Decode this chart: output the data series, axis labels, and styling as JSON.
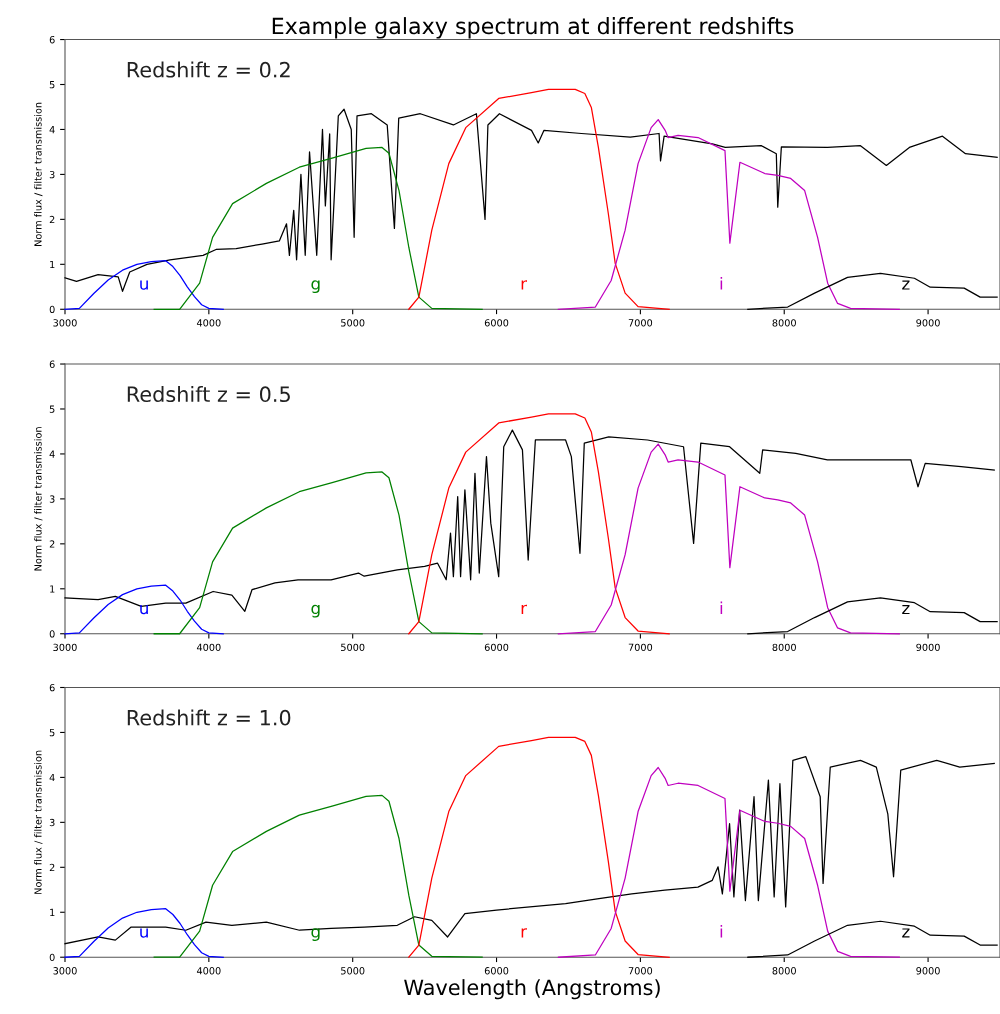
{
  "chart_data": [
    {
      "type": "line",
      "title": "Example galaxy spectrum at different redshifts",
      "subtitle": "Redshift z = 0.2",
      "ylabel": "Norm flux / filter transmission",
      "xlim": [
        3000,
        9500
      ],
      "xticks": [
        3000,
        4000,
        5000,
        6000,
        7000,
        8000,
        9000
      ],
      "ylim": [
        0,
        6
      ],
      "yticks": [
        0,
        1,
        2,
        3,
        4,
        5,
        6
      ],
      "grid": false,
      "legend": false,
      "series": [
        {
          "color": "#000000",
          "x": [
            3000,
            3080,
            3230,
            3370,
            3400,
            3450,
            3570,
            3730,
            3960,
            4050,
            4190,
            4370,
            4490,
            4540,
            4560,
            4590,
            4610,
            4640,
            4670,
            4700,
            4750,
            4790,
            4810,
            4840,
            4850,
            4900,
            4940,
            4990,
            5010,
            5030,
            5130,
            5240,
            5290,
            5320,
            5470,
            5700,
            5860,
            5920,
            5940,
            6020,
            6243,
            6290,
            6330,
            6590,
            6930,
            7130,
            7140,
            7165,
            7500,
            7590,
            7840,
            7945,
            7955,
            7980,
            8300,
            8530,
            8710,
            8870,
            9100,
            9260,
            9480
          ],
          "values": [
            0.7,
            0.62,
            0.77,
            0.72,
            0.4,
            0.83,
            1.0,
            1.1,
            1.2,
            1.33,
            1.35,
            1.45,
            1.52,
            1.9,
            1.2,
            2.2,
            1.1,
            3.0,
            1.2,
            3.5,
            1.2,
            4.0,
            2.3,
            3.9,
            1.1,
            4.3,
            4.45,
            4.0,
            1.6,
            4.3,
            4.35,
            4.1,
            1.8,
            4.25,
            4.35,
            4.1,
            4.35,
            2.0,
            4.1,
            4.35,
            3.98,
            3.7,
            3.98,
            3.91,
            3.83,
            3.91,
            3.3,
            3.85,
            3.68,
            3.6,
            3.64,
            3.46,
            2.27,
            3.61,
            3.6,
            3.64,
            3.2,
            3.6,
            3.85,
            3.46,
            3.38
          ]
        },
        {
          "name": "u",
          "color": "#0000ff",
          "x": [
            3000,
            3100,
            3200,
            3300,
            3400,
            3500,
            3600,
            3700,
            3750,
            3800,
            3850,
            3900,
            3950,
            4000,
            4100
          ],
          "values": [
            0,
            0.02,
            0.35,
            0.65,
            0.87,
            1.0,
            1.06,
            1.08,
            0.95,
            0.75,
            0.5,
            0.28,
            0.1,
            0.02,
            0
          ]
        },
        {
          "name": "g",
          "color": "#008000",
          "x": [
            3620,
            3797,
            3936,
            4026,
            4165,
            4400,
            4629,
            4857,
            5093,
            5204,
            5252,
            5322,
            5390,
            5460,
            5550,
            5900
          ],
          "values": [
            0,
            0,
            0.58,
            1.6,
            2.35,
            2.8,
            3.16,
            3.36,
            3.58,
            3.6,
            3.47,
            2.64,
            1.38,
            0.27,
            0.02,
            0
          ]
        },
        {
          "name": "r",
          "color": "#ff0000",
          "x": [
            5390,
            5460,
            5550,
            5668,
            5786,
            6015,
            6243,
            6361,
            6547,
            6614,
            6659,
            6708,
            6777,
            6825,
            6894,
            6984,
            7200
          ],
          "values": [
            0,
            0.27,
            1.76,
            3.24,
            4.04,
            4.69,
            4.82,
            4.89,
            4.89,
            4.8,
            4.49,
            3.6,
            2.13,
            1.02,
            0.36,
            0.06,
            0
          ]
        },
        {
          "name": "i",
          "color": "#bf00bf",
          "x": [
            6430,
            6687,
            6797,
            6894,
            6984,
            7075,
            7124,
            7172,
            7193,
            7262,
            7401,
            7588,
            7622,
            7692,
            7865,
            7955,
            8045,
            8142,
            8232,
            8302,
            8371,
            8461,
            8800
          ],
          "values": [
            0,
            0.05,
            0.64,
            1.76,
            3.24,
            4.04,
            4.22,
            3.98,
            3.82,
            3.87,
            3.82,
            3.53,
            1.47,
            3.27,
            3.02,
            2.98,
            2.91,
            2.64,
            1.6,
            0.58,
            0.13,
            0.02,
            0
          ]
        },
        {
          "name": "z",
          "color": "#000000",
          "x": [
            7747,
            8024,
            8211,
            8440,
            8669,
            8905,
            9015,
            9251,
            9362,
            9480
          ],
          "values": [
            0,
            0.05,
            0.36,
            0.71,
            0.8,
            0.69,
            0.49,
            0.47,
            0.27,
            0.27
          ]
        }
      ]
    },
    {
      "type": "line",
      "subtitle": "Redshift z = 0.5",
      "ylabel": "Norm flux / filter transmission",
      "xlim": [
        3000,
        9500
      ],
      "xticks": [
        3000,
        4000,
        5000,
        6000,
        7000,
        8000,
        9000
      ],
      "ylim": [
        0,
        6
      ],
      "yticks": [
        0,
        1,
        2,
        3,
        4,
        5,
        6
      ],
      "grid": false,
      "legend": false,
      "series": [
        {
          "color": "#000000",
          "x": [
            3000,
            3230,
            3350,
            3530,
            3700,
            3840,
            4030,
            4160,
            4250,
            4300,
            4460,
            4620,
            4850,
            5040,
            5080,
            5310,
            5500,
            5590,
            5650,
            5680,
            5700,
            5730,
            5750,
            5780,
            5820,
            5850,
            5880,
            5930,
            5960,
            6015,
            6050,
            6110,
            6180,
            6220,
            6270,
            6480,
            6520,
            6580,
            6610,
            6780,
            7050,
            7300,
            7370,
            7420,
            7620,
            7830,
            7850,
            8080,
            8300,
            8540,
            8880,
            8930,
            8980,
            9230,
            9460
          ],
          "values": [
            0.8,
            0.76,
            0.83,
            0.61,
            0.68,
            0.68,
            0.94,
            0.86,
            0.5,
            0.98,
            1.13,
            1.2,
            1.2,
            1.35,
            1.28,
            1.42,
            1.5,
            1.57,
            1.2,
            2.24,
            1.27,
            3.05,
            1.27,
            3.2,
            1.2,
            3.57,
            1.35,
            3.94,
            2.46,
            1.27,
            4.16,
            4.53,
            4.09,
            1.64,
            4.31,
            4.31,
            3.94,
            1.79,
            4.24,
            4.38,
            4.31,
            4.16,
            2.01,
            4.24,
            4.16,
            3.57,
            4.09,
            4.01,
            3.87,
            3.87,
            3.87,
            3.27,
            3.79,
            3.72,
            3.64
          ]
        },
        {
          "name": "u",
          "color": "#0000ff",
          "x": [
            3000,
            3100,
            3200,
            3300,
            3400,
            3500,
            3600,
            3700,
            3750,
            3800,
            3850,
            3900,
            3950,
            4000,
            4100
          ],
          "values": [
            0,
            0.02,
            0.35,
            0.65,
            0.87,
            1.0,
            1.06,
            1.08,
            0.95,
            0.75,
            0.5,
            0.28,
            0.1,
            0.02,
            0
          ]
        },
        {
          "name": "g",
          "color": "#008000",
          "x": [
            3620,
            3797,
            3936,
            4026,
            4165,
            4400,
            4629,
            4857,
            5093,
            5204,
            5252,
            5322,
            5390,
            5460,
            5550,
            5900
          ],
          "values": [
            0,
            0,
            0.58,
            1.6,
            2.35,
            2.8,
            3.16,
            3.36,
            3.58,
            3.6,
            3.47,
            2.64,
            1.38,
            0.27,
            0.02,
            0
          ]
        },
        {
          "name": "r",
          "color": "#ff0000",
          "x": [
            5390,
            5460,
            5550,
            5668,
            5786,
            6015,
            6243,
            6361,
            6547,
            6614,
            6659,
            6708,
            6777,
            6825,
            6894,
            6984,
            7200
          ],
          "values": [
            0,
            0.27,
            1.76,
            3.24,
            4.04,
            4.69,
            4.82,
            4.89,
            4.89,
            4.8,
            4.49,
            3.6,
            2.13,
            1.02,
            0.36,
            0.06,
            0
          ]
        },
        {
          "name": "i",
          "color": "#bf00bf",
          "x": [
            6430,
            6687,
            6797,
            6894,
            6984,
            7075,
            7124,
            7172,
            7193,
            7262,
            7401,
            7588,
            7622,
            7692,
            7865,
            7955,
            8045,
            8142,
            8232,
            8302,
            8371,
            8461,
            8800
          ],
          "values": [
            0,
            0.05,
            0.64,
            1.76,
            3.24,
            4.04,
            4.22,
            3.98,
            3.82,
            3.87,
            3.82,
            3.53,
            1.47,
            3.27,
            3.02,
            2.98,
            2.91,
            2.64,
            1.6,
            0.58,
            0.13,
            0.02,
            0
          ]
        },
        {
          "name": "z",
          "color": "#000000",
          "x": [
            7747,
            8024,
            8211,
            8440,
            8669,
            8905,
            9015,
            9251,
            9362,
            9480
          ],
          "values": [
            0,
            0.05,
            0.36,
            0.71,
            0.8,
            0.69,
            0.49,
            0.47,
            0.27,
            0.27
          ]
        }
      ]
    },
    {
      "type": "line",
      "subtitle": "Redshift z = 1.0",
      "xlabel": "Wavelength (Angstroms)",
      "ylabel": "Norm flux / filter transmission",
      "xlim": [
        3000,
        9500
      ],
      "xticks": [
        3000,
        4000,
        5000,
        6000,
        7000,
        8000,
        9000
      ],
      "ylim": [
        0,
        6
      ],
      "yticks": [
        0,
        1,
        2,
        3,
        4,
        5,
        6
      ],
      "grid": false,
      "legend": false,
      "series": [
        {
          "color": "#000000",
          "x": [
            3000,
            3230,
            3350,
            3460,
            3700,
            3840,
            3980,
            4160,
            4400,
            4630,
            4850,
            5080,
            5310,
            5430,
            5550,
            5660,
            5780,
            6000,
            6480,
            6700,
            6940,
            7170,
            7400,
            7500,
            7540,
            7570,
            7620,
            7650,
            7690,
            7730,
            7790,
            7820,
            7890,
            7930,
            7970,
            8010,
            8060,
            8150,
            8250,
            8270,
            8320,
            8530,
            8640,
            8720,
            8760,
            8810,
            9060,
            9220,
            9460
          ],
          "values": [
            0.3,
            0.45,
            0.38,
            0.67,
            0.67,
            0.6,
            0.78,
            0.71,
            0.78,
            0.6,
            0.64,
            0.67,
            0.71,
            0.9,
            0.82,
            0.45,
            0.97,
            1.05,
            1.19,
            1.3,
            1.41,
            1.49,
            1.56,
            1.71,
            2.01,
            1.41,
            2.97,
            1.34,
            3.27,
            1.26,
            3.57,
            1.26,
            3.94,
            1.34,
            3.86,
            1.12,
            4.38,
            4.46,
            3.57,
            1.64,
            4.23,
            4.38,
            4.23,
            3.19,
            1.79,
            4.16,
            4.38,
            4.23,
            4.31
          ]
        },
        {
          "name": "u",
          "color": "#0000ff",
          "x": [
            3000,
            3100,
            3200,
            3300,
            3400,
            3500,
            3600,
            3700,
            3750,
            3800,
            3850,
            3900,
            3950,
            4000,
            4100
          ],
          "values": [
            0,
            0.02,
            0.35,
            0.65,
            0.87,
            1.0,
            1.06,
            1.08,
            0.95,
            0.75,
            0.5,
            0.28,
            0.1,
            0.02,
            0
          ]
        },
        {
          "name": "g",
          "color": "#008000",
          "x": [
            3620,
            3797,
            3936,
            4026,
            4165,
            4400,
            4629,
            4857,
            5093,
            5204,
            5252,
            5322,
            5390,
            5460,
            5550,
            5900
          ],
          "values": [
            0,
            0,
            0.58,
            1.6,
            2.35,
            2.8,
            3.16,
            3.36,
            3.58,
            3.6,
            3.47,
            2.64,
            1.38,
            0.27,
            0.02,
            0
          ]
        },
        {
          "name": "r",
          "color": "#ff0000",
          "x": [
            5390,
            5460,
            5550,
            5668,
            5786,
            6015,
            6243,
            6361,
            6547,
            6614,
            6659,
            6708,
            6777,
            6825,
            6894,
            6984,
            7200
          ],
          "values": [
            0,
            0.27,
            1.76,
            3.24,
            4.04,
            4.69,
            4.82,
            4.89,
            4.89,
            4.8,
            4.49,
            3.6,
            2.13,
            1.02,
            0.36,
            0.06,
            0
          ]
        },
        {
          "name": "i",
          "color": "#bf00bf",
          "x": [
            6430,
            6687,
            6797,
            6894,
            6984,
            7075,
            7124,
            7172,
            7193,
            7262,
            7401,
            7588,
            7622,
            7692,
            7865,
            7955,
            8045,
            8142,
            8232,
            8302,
            8371,
            8461,
            8800
          ],
          "values": [
            0,
            0.05,
            0.64,
            1.76,
            3.24,
            4.04,
            4.22,
            3.98,
            3.82,
            3.87,
            3.82,
            3.53,
            1.47,
            3.27,
            3.02,
            2.98,
            2.91,
            2.64,
            1.6,
            0.58,
            0.13,
            0.02,
            0
          ]
        },
        {
          "name": "z",
          "color": "#000000",
          "x": [
            7747,
            8024,
            8211,
            8440,
            8669,
            8905,
            9015,
            9251,
            9362,
            9480
          ],
          "values": [
            0,
            0.05,
            0.36,
            0.71,
            0.8,
            0.69,
            0.49,
            0.47,
            0.27,
            0.27
          ]
        }
      ]
    }
  ]
}
